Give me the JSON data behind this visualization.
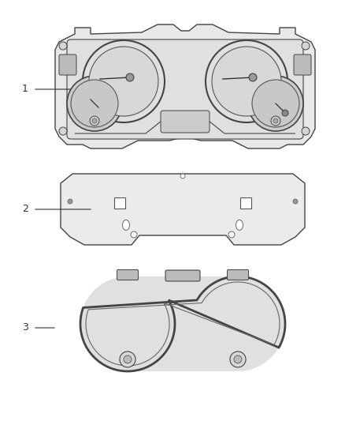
{
  "background_color": "#ffffff",
  "line_color": "#444444",
  "label_color": "#333333",
  "face_color": "#f0f0f0",
  "dark_color": "#888888"
}
